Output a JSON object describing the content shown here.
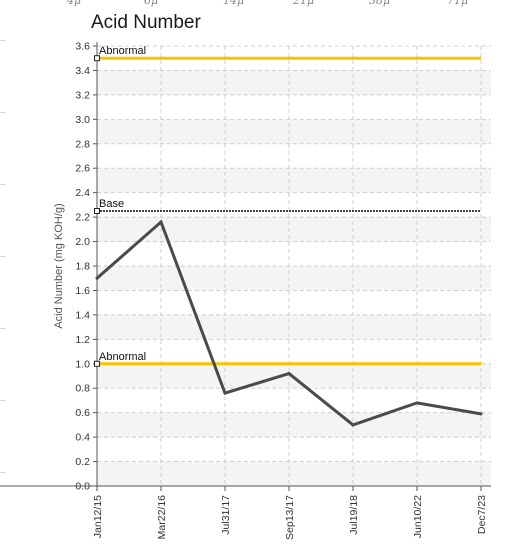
{
  "top_strip": {
    "labels": [
      "4μ",
      "6μ",
      "14μ",
      "21μ",
      "38μ",
      "71μ"
    ]
  },
  "chart_data": {
    "type": "line",
    "title": "Acid Number",
    "xlabel": "",
    "ylabel": "Acid Number (mg KOH/g)",
    "ylim": [
      0.0,
      3.6
    ],
    "y_ticks": [
      0.0,
      0.2,
      0.4,
      0.6,
      0.8,
      1.0,
      1.2,
      1.4,
      1.6,
      1.8,
      2.0,
      2.2,
      2.4,
      2.6,
      2.8,
      3.0,
      3.2,
      3.4,
      3.6
    ],
    "y_tick_labels": [
      "0.0",
      "0.2",
      "0.4",
      "0.6",
      "0.8",
      "1.0",
      "1.2",
      "1.4",
      "1.6",
      "1.8",
      "2.0",
      "2.2",
      "2.4",
      "2.6",
      "2.8",
      "3.0",
      "3.2",
      "3.4",
      "3.6"
    ],
    "categories": [
      "Jan12/15",
      "Mar22/16",
      "Jul31/17",
      "Sep13/17",
      "Jul19/18",
      "Jun10/22",
      "Dec7/23"
    ],
    "series": [
      {
        "values": [
          1.7,
          2.16,
          0.76,
          0.92,
          0.5,
          0.68,
          0.59
        ],
        "color": "#4a4a4a"
      }
    ],
    "reference_lines": [
      {
        "label": "Abnormal",
        "value": 3.5,
        "color": "#f5c400",
        "style": "solid"
      },
      {
        "label": "Base",
        "value": 2.25,
        "color": "#444444",
        "style": "dotted"
      },
      {
        "label": "Abnormal",
        "value": 1.0,
        "color": "#f5c400",
        "style": "solid"
      }
    ],
    "grid": true,
    "legend": "none"
  }
}
